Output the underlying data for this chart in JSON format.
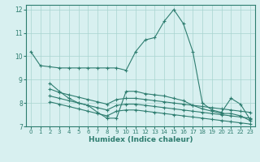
{
  "xlabel": "Humidex (Indice chaleur)",
  "bg_color": "#d8f0f0",
  "line_color": "#2e7d70",
  "grid_color": "#a8d4d0",
  "xlim": [
    -0.5,
    23.5
  ],
  "ylim": [
    7,
    12.2
  ],
  "yticks": [
    7,
    8,
    9,
    10,
    11,
    12
  ],
  "xticks": [
    0,
    1,
    2,
    3,
    4,
    5,
    6,
    7,
    8,
    9,
    10,
    11,
    12,
    13,
    14,
    15,
    16,
    17,
    18,
    19,
    20,
    21,
    22,
    23
  ],
  "series": [
    {
      "x": [
        0,
        1,
        2,
        3,
        4,
        5,
        6,
        7,
        8,
        9,
        10,
        11,
        12,
        13,
        14,
        15,
        16,
        17,
        18,
        19,
        20,
        21,
        22,
        23
      ],
      "y": [
        10.2,
        9.6,
        9.55,
        9.5,
        9.5,
        9.5,
        9.5,
        9.5,
        9.5,
        9.5,
        9.4,
        10.2,
        10.7,
        10.8,
        11.5,
        12.0,
        11.4,
        10.2,
        8.0,
        7.7,
        7.6,
        8.2,
        7.95,
        7.3
      ]
    },
    {
      "x": [
        2,
        3,
        4,
        5,
        6,
        7,
        8,
        9,
        10,
        11,
        12,
        13,
        14,
        15,
        16,
        17,
        18,
        19,
        20,
        21,
        22,
        23
      ],
      "y": [
        8.85,
        8.5,
        8.2,
        8.0,
        7.9,
        7.6,
        7.35,
        7.35,
        8.5,
        8.5,
        8.4,
        8.35,
        8.3,
        8.2,
        8.1,
        7.9,
        7.75,
        7.65,
        7.55,
        7.55,
        7.45,
        7.25
      ]
    },
    {
      "x": [
        2,
        3,
        4,
        5,
        6,
        7,
        8,
        9,
        10,
        11,
        12,
        13,
        14,
        15,
        16,
        17,
        18,
        19,
        20,
        21,
        22,
        23
      ],
      "y": [
        8.6,
        8.45,
        8.35,
        8.25,
        8.15,
        8.05,
        7.95,
        8.15,
        8.2,
        8.2,
        8.15,
        8.1,
        8.05,
        8.0,
        7.95,
        7.9,
        7.85,
        7.8,
        7.75,
        7.7,
        7.65,
        7.6
      ]
    },
    {
      "x": [
        2,
        3,
        4,
        5,
        6,
        7,
        8,
        9,
        10,
        11,
        12,
        13,
        14,
        15,
        16,
        17,
        18,
        19,
        20,
        21,
        22,
        23
      ],
      "y": [
        8.3,
        8.2,
        8.1,
        8.0,
        7.9,
        7.8,
        7.7,
        7.9,
        7.95,
        7.95,
        7.9,
        7.85,
        7.8,
        7.75,
        7.7,
        7.65,
        7.6,
        7.55,
        7.5,
        7.45,
        7.4,
        7.35
      ]
    },
    {
      "x": [
        2,
        3,
        4,
        5,
        6,
        7,
        8,
        9,
        10,
        11,
        12,
        13,
        14,
        15,
        16,
        17,
        18,
        19,
        20,
        21,
        22,
        23
      ],
      "y": [
        8.05,
        7.95,
        7.85,
        7.75,
        7.65,
        7.55,
        7.45,
        7.65,
        7.7,
        7.7,
        7.65,
        7.6,
        7.55,
        7.5,
        7.45,
        7.4,
        7.35,
        7.3,
        7.25,
        7.2,
        7.15,
        7.1
      ]
    }
  ]
}
